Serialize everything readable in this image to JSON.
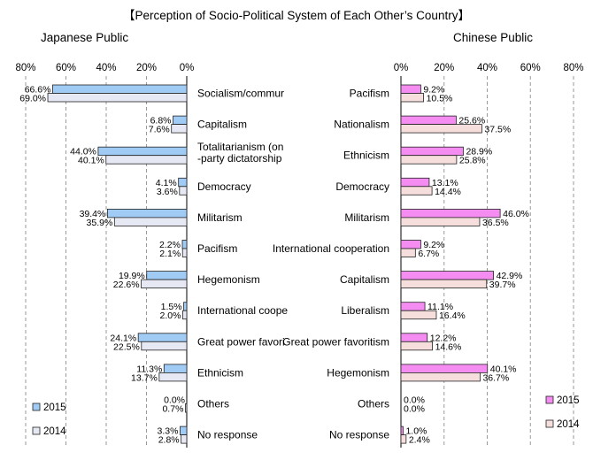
{
  "title": "【Perception of Socio-Political System of Each Other’s Country】",
  "colors": {
    "japan_2015": "#9fcbf5",
    "japan_2014": "#e6e8f3",
    "china_2015": "#f58cf2",
    "china_2014": "#f6dedd",
    "bar_stroke": "#222222",
    "grid": "#9a9a9a"
  },
  "chart_data": [
    {
      "type": "bar",
      "orientation": "horizontal",
      "direction": "right-to-left",
      "title": "Japanese Public",
      "xlim": [
        0,
        80
      ],
      "ticks": [
        "80%",
        "60%",
        "40%",
        "20%",
        "0%"
      ],
      "tick_values": [
        80,
        60,
        40,
        20,
        0
      ],
      "grid": true,
      "legend_position": "bottom-left",
      "categories": [
        "Socialism/commur",
        "Capitalism",
        "Totalitarianism (on\n-party dictatorship",
        "Democracy",
        "Militarism",
        "Pacifism",
        "Hegemonism",
        "International coope",
        "Great power favori",
        "Ethnicism",
        "Others",
        "No response"
      ],
      "series": [
        {
          "name": "2015",
          "values": [
            66.6,
            6.8,
            44.0,
            4.1,
            39.4,
            2.2,
            19.9,
            1.5,
            24.1,
            11.3,
            0.0,
            3.3
          ],
          "labels": [
            "66.6%",
            "6.8%",
            "44.0%",
            "4.1%",
            "39.4%",
            "2.2%",
            "19.9%",
            "1.5%",
            "24.1%",
            "11.3%",
            "0.0%",
            "3.3%"
          ]
        },
        {
          "name": "2014",
          "values": [
            69.0,
            7.6,
            40.1,
            3.6,
            35.9,
            2.1,
            22.6,
            2.0,
            22.5,
            13.7,
            0.7,
            2.8
          ],
          "labels": [
            "69.0%",
            "7.6%",
            "40.1%",
            "3.6%",
            "35.9%",
            "2.1%",
            "22.6%",
            "2.0%",
            "22.5%",
            "13.7%",
            "0.7%",
            "2.8%"
          ]
        }
      ]
    },
    {
      "type": "bar",
      "orientation": "horizontal",
      "direction": "left-to-right",
      "title": "Chinese Public",
      "xlim": [
        0,
        80
      ],
      "ticks": [
        "0%",
        "20%",
        "40%",
        "60%",
        "80%"
      ],
      "tick_values": [
        0,
        20,
        40,
        60,
        80
      ],
      "grid": true,
      "legend_position": "bottom-right",
      "categories": [
        "Pacifism",
        "Nationalism",
        "Ethnicism",
        "Democracy",
        "Militarism",
        "International cooperation",
        "Capitalism",
        "Liberalism",
        "Great power favoritism",
        "Hegemonism",
        "Others",
        "No response"
      ],
      "series": [
        {
          "name": "2015",
          "values": [
            9.2,
            25.6,
            28.9,
            13.1,
            46.0,
            9.2,
            42.9,
            11.1,
            12.2,
            40.1,
            0.0,
            1.0
          ],
          "labels": [
            "9.2%",
            "25.6%",
            "28.9%",
            "13.1%",
            "46.0%",
            "9.2%",
            "42.9%",
            "11.1%",
            "12.2%",
            "40.1%",
            "0.0%",
            "1.0%"
          ]
        },
        {
          "name": "2014",
          "values": [
            10.5,
            37.5,
            25.8,
            14.4,
            36.5,
            6.7,
            39.7,
            16.4,
            14.6,
            36.7,
            0.0,
            2.4
          ],
          "labels": [
            "10.5%",
            "37.5%",
            "25.8%",
            "14.4%",
            "36.5%",
            "6.7%",
            "39.7%",
            "16.4%",
            "14.6%",
            "36.7%",
            "0.0%",
            "2.4%"
          ]
        }
      ]
    }
  ]
}
